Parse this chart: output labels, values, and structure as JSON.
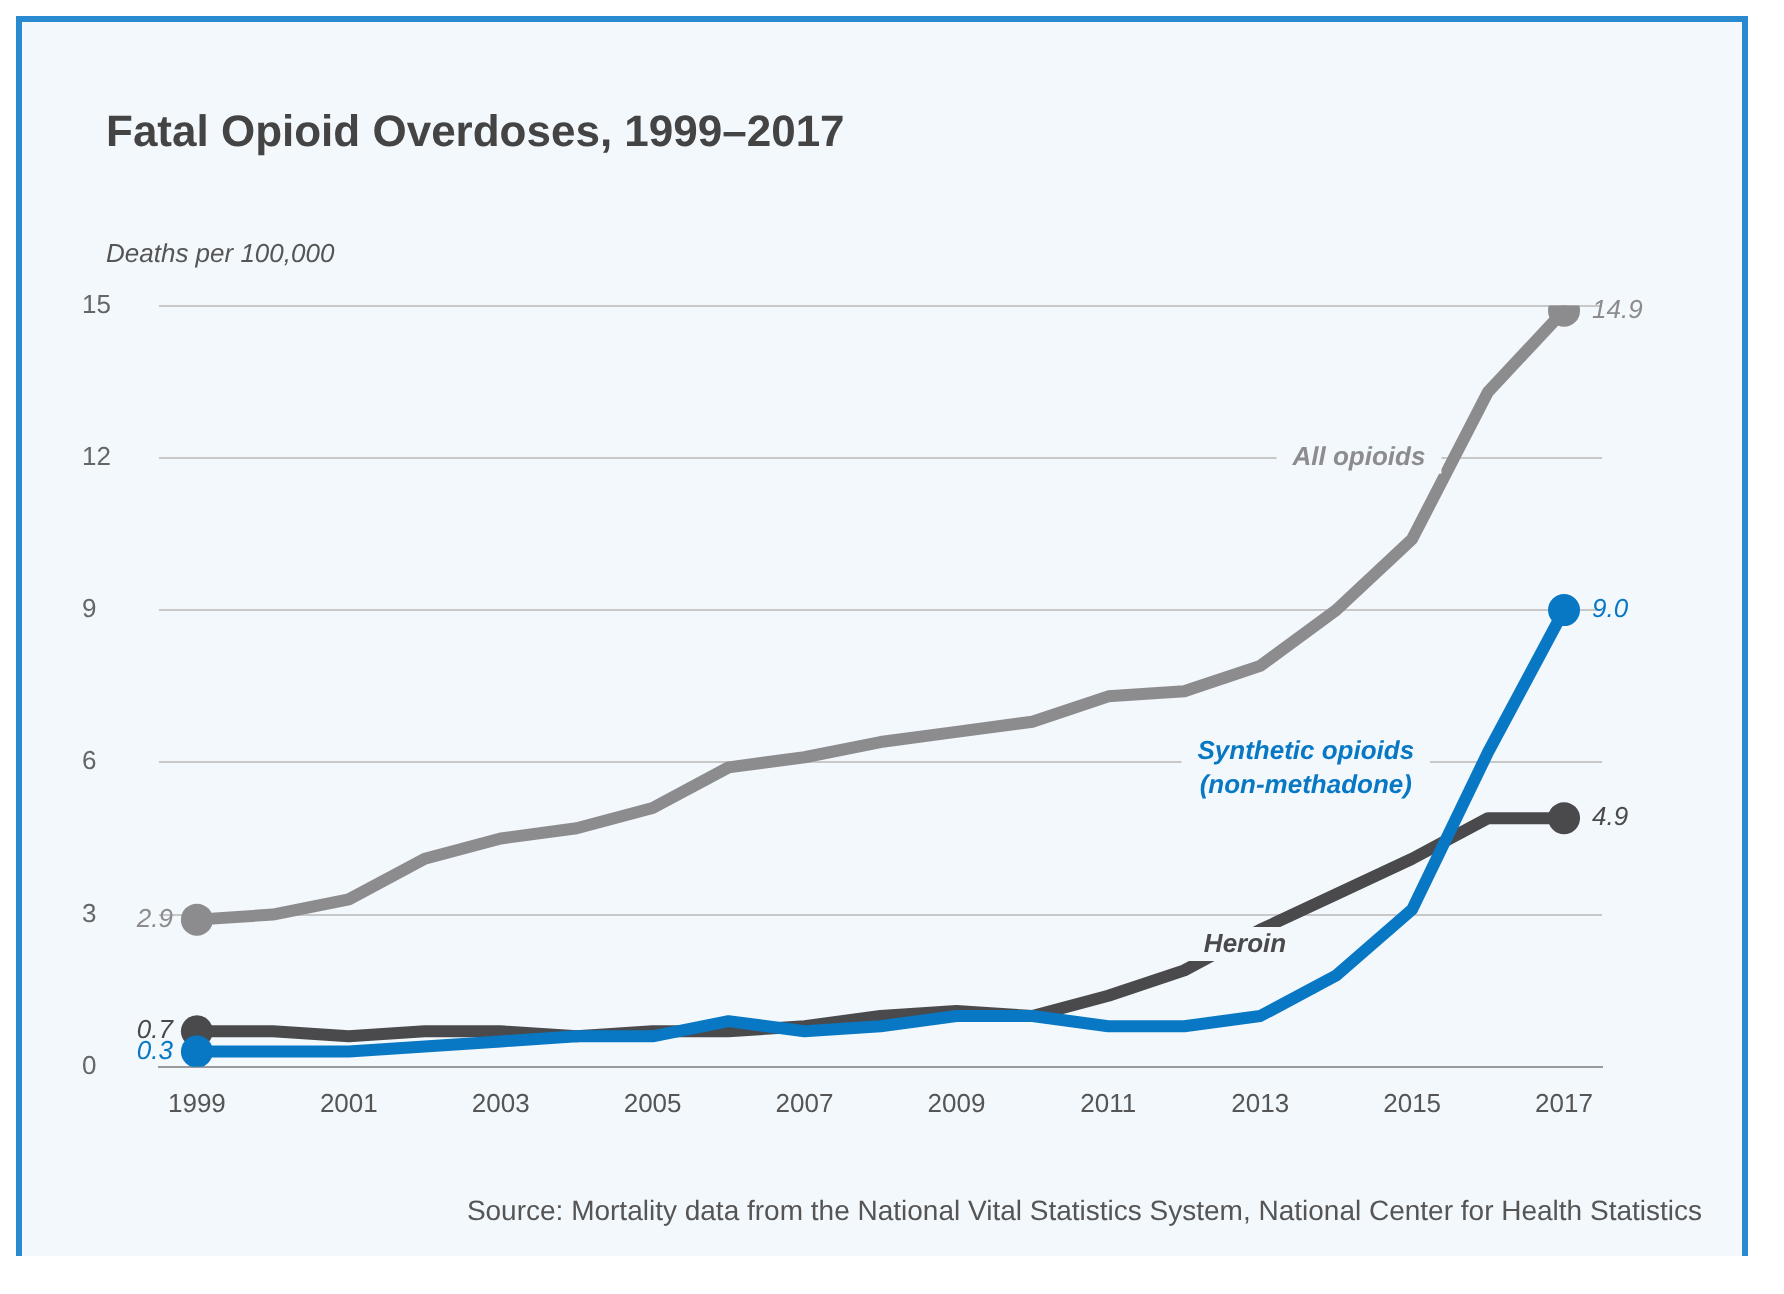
{
  "chart_data": {
    "type": "line",
    "title": "Fatal Opioid Overdoses, 1999–2017",
    "ylabel": "Deaths per 100,000",
    "categories": [
      "1999",
      null,
      "2001",
      null,
      "2003",
      null,
      "2005",
      null,
      "2007",
      null,
      "2009",
      null,
      "2011",
      null,
      "2013",
      null,
      "2015",
      null,
      "2017"
    ],
    "series": [
      {
        "name": "All opioids",
        "color": "#8c8c8f",
        "values": [
          2.9,
          3.0,
          3.3,
          4.1,
          4.5,
          4.7,
          5.1,
          5.9,
          6.1,
          6.4,
          6.6,
          6.8,
          7.3,
          7.4,
          7.9,
          9.0,
          10.4,
          13.3,
          14.9
        ],
        "value_labels": [
          "2.9",
          null,
          null,
          null,
          null,
          null,
          null,
          null,
          null,
          null,
          null,
          null,
          null,
          null,
          null,
          null,
          null,
          null,
          "14.9"
        ]
      },
      {
        "name": "Synthetic opioids\n(non-methadone)",
        "color": "#0878c4",
        "values": [
          0.3,
          0.3,
          0.3,
          0.4,
          0.5,
          0.6,
          0.6,
          0.9,
          0.7,
          0.8,
          1.0,
          1.0,
          0.8,
          0.8,
          1.0,
          1.8,
          3.1,
          6.2,
          9.0
        ],
        "value_labels": [
          "0.3",
          null,
          null,
          null,
          null,
          null,
          null,
          null,
          null,
          null,
          null,
          null,
          null,
          null,
          null,
          null,
          null,
          null,
          "9.0"
        ]
      },
      {
        "name": "Heroin",
        "color": "#4a4a4c",
        "values": [
          0.7,
          0.7,
          0.6,
          0.7,
          0.7,
          0.6,
          0.7,
          0.7,
          0.8,
          1.0,
          1.1,
          1.0,
          1.4,
          1.9,
          2.7,
          3.4,
          4.1,
          4.9,
          4.9
        ],
        "value_labels": [
          "0.7",
          null,
          null,
          null,
          null,
          null,
          null,
          null,
          null,
          null,
          null,
          null,
          null,
          null,
          null,
          null,
          null,
          null,
          "4.9"
        ]
      }
    ],
    "ylim": [
      0,
      15
    ],
    "yticks": [
      0,
      3,
      6,
      9,
      12,
      15
    ],
    "grid": "y",
    "legend": false,
    "annotations": [
      "Source: Mortality data from the National Vital Statistics System, National Center for Health Statistics"
    ]
  }
}
